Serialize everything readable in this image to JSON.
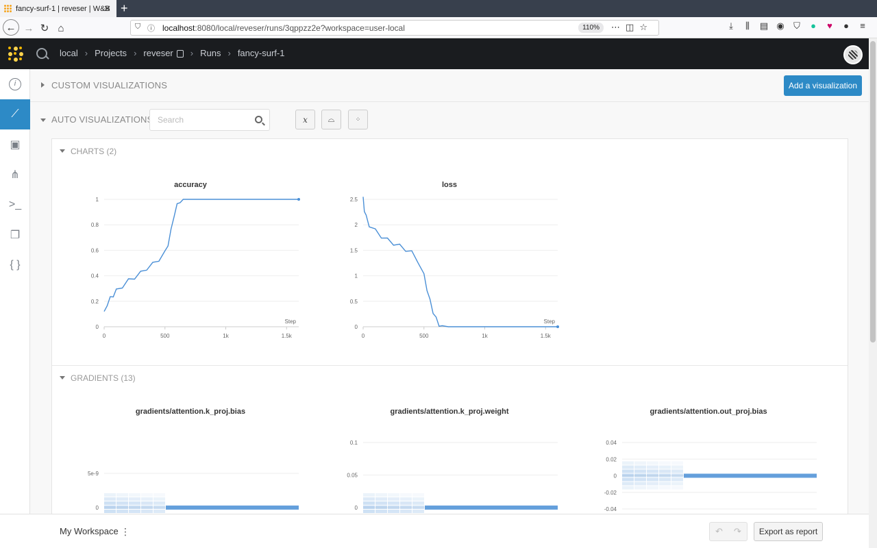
{
  "browser": {
    "tab_title": "fancy-surf-1 | reveser | W&B",
    "url_host": "localhost",
    "url_path": ":8080/local/reveser/runs/3qppzz2e?workspace=user-local",
    "zoom": "110%"
  },
  "header": {
    "crumbs": [
      "local",
      "Projects",
      "reveser",
      "Runs",
      "fancy-surf-1"
    ]
  },
  "sidebar": {
    "items": [
      "info-icon",
      "chart-icon",
      "chip-icon",
      "tree-icon",
      "terminal-icon",
      "files-icon",
      "braces-icon"
    ]
  },
  "sections": {
    "custom_title": "CUSTOM VISUALIZATIONS",
    "add_viz": "Add a visualization",
    "auto_title": "AUTO VISUALIZATIONS",
    "search_placeholder": "Search",
    "charts_head": "CHARTS (2)",
    "gradients_head": "GRADIENTS (13)"
  },
  "chart_data": [
    {
      "type": "line",
      "title": "accuracy",
      "xlabel": "Step",
      "xticks": [
        "0",
        "500",
        "1k",
        "1.5k"
      ],
      "yticks": [
        "0",
        "0.2",
        "0.4",
        "0.6",
        "0.8",
        "1"
      ],
      "xlim": [
        0,
        1600
      ],
      "ylim": [
        0,
        1
      ],
      "x": [
        0,
        25,
        50,
        75,
        100,
        150,
        200,
        250,
        300,
        350,
        400,
        450,
        500,
        525,
        550,
        575,
        600,
        625,
        650,
        700,
        800,
        1000,
        1200,
        1400,
        1600
      ],
      "y": [
        0.12,
        0.18,
        0.22,
        0.25,
        0.28,
        0.32,
        0.36,
        0.39,
        0.42,
        0.46,
        0.49,
        0.53,
        0.58,
        0.65,
        0.75,
        0.88,
        0.95,
        0.99,
        1.0,
        1.0,
        1.0,
        1.0,
        1.0,
        1.0,
        1.0
      ]
    },
    {
      "type": "line",
      "title": "loss",
      "xlabel": "Step",
      "xticks": [
        "0",
        "500",
        "1k",
        "1.5k"
      ],
      "yticks": [
        "0",
        "0.5",
        "1",
        "1.5",
        "2",
        "2.5"
      ],
      "xlim": [
        0,
        1600
      ],
      "ylim": [
        0,
        2.5
      ],
      "x": [
        0,
        10,
        25,
        50,
        100,
        150,
        200,
        250,
        300,
        350,
        400,
        450,
        500,
        525,
        550,
        575,
        600,
        625,
        650,
        700,
        800,
        1000,
        1200,
        1400,
        1600
      ],
      "y": [
        2.55,
        2.3,
        2.15,
        2.0,
        1.88,
        1.78,
        1.7,
        1.64,
        1.58,
        1.52,
        1.45,
        1.3,
        1.0,
        0.75,
        0.5,
        0.3,
        0.15,
        0.05,
        0.02,
        0.0,
        0.0,
        0.0,
        0.0,
        0.0,
        0.0
      ]
    }
  ],
  "gradients": [
    {
      "title": "gradients/attention.k_proj.bias",
      "yticks": [
        "5e-9",
        "0"
      ]
    },
    {
      "title": "gradients/attention.k_proj.weight",
      "yticks": [
        "0.1",
        "0.05",
        "0"
      ]
    },
    {
      "title": "gradients/attention.out_proj.bias",
      "yticks": [
        "0.04",
        "0.02",
        "0",
        "-0.02",
        "-0.04"
      ]
    }
  ],
  "footer": {
    "workspace": "My Workspace",
    "export": "Export as report"
  }
}
